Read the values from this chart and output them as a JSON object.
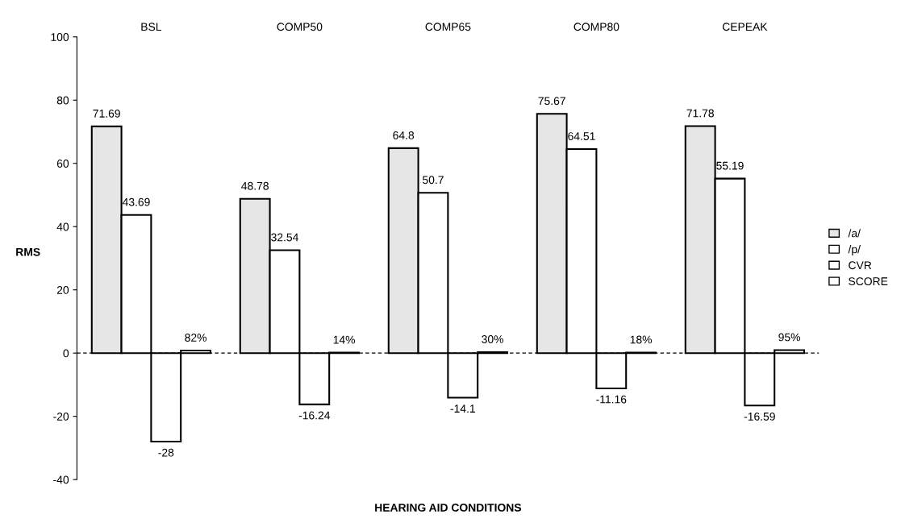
{
  "chart_data": {
    "type": "bar",
    "xlabel": "HEARING AID CONDITIONS",
    "ylabel": "RMS",
    "categories": [
      "BSL",
      "COMP50",
      "COMP65",
      "COMP80",
      "CEPEAK"
    ],
    "series": [
      {
        "name": "/a/",
        "color": "#e6e6e6",
        "values": [
          71.69,
          48.78,
          64.8,
          75.67,
          71.78
        ]
      },
      {
        "name": "/p/",
        "color": "#ffffff",
        "values": [
          43.69,
          32.54,
          50.7,
          64.51,
          55.19
        ]
      },
      {
        "name": "CVR",
        "color": "#ffffff",
        "values": [
          -28,
          -16.24,
          -14.1,
          -11.16,
          -16.59
        ]
      },
      {
        "name": "SCORE",
        "color": "#ffffff",
        "values": [
          0.82,
          0.14,
          0.3,
          0.18,
          0.95
        ],
        "value_labels": [
          "82%",
          "14%",
          "30%",
          "18%",
          "95%"
        ]
      }
    ],
    "ref_lines": [
      {
        "axis": "y",
        "value": 0,
        "line_style": "dashed"
      }
    ],
    "data_labels": true,
    "ylim": [
      -40,
      100
    ],
    "yticks": [
      -40,
      -20,
      0,
      20,
      40,
      60,
      80,
      100
    ],
    "grid": false,
    "legend": "right"
  }
}
